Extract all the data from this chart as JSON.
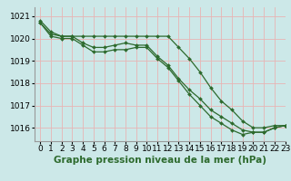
{
  "bg_color": "#cce8e8",
  "grid_color": "#e8b4b4",
  "line_color": "#2d6a2d",
  "xlabel": "Graphe pression niveau de la mer (hPa)",
  "xlabel_fontsize": 7.5,
  "tick_fontsize": 6.5,
  "xlim": [
    -0.5,
    23
  ],
  "ylim": [
    1015.4,
    1021.4
  ],
  "yticks": [
    1016,
    1017,
    1018,
    1019,
    1020,
    1021
  ],
  "xticks": [
    0,
    1,
    2,
    3,
    4,
    5,
    6,
    7,
    8,
    9,
    10,
    11,
    12,
    13,
    14,
    15,
    16,
    17,
    18,
    19,
    20,
    21,
    22,
    23
  ],
  "line1": [
    1020.8,
    1020.3,
    1020.1,
    1020.1,
    1020.1,
    1020.1,
    1020.1,
    1020.1,
    1020.1,
    1020.1,
    1020.1,
    1020.1,
    1020.1,
    1019.6,
    1019.1,
    1018.5,
    1017.8,
    1017.2,
    1016.8,
    1016.3,
    1016.0,
    1016.0,
    1016.1,
    1016.1
  ],
  "line2": [
    1020.7,
    1020.2,
    1020.1,
    1020.1,
    1019.8,
    1019.6,
    1019.6,
    1019.7,
    1019.8,
    1019.7,
    1019.7,
    1019.2,
    1018.8,
    1018.2,
    1017.7,
    1017.3,
    1016.8,
    1016.5,
    1016.2,
    1015.9,
    1015.8,
    1015.8,
    1016.0,
    1016.1
  ],
  "line3": [
    1020.7,
    1020.1,
    1020.0,
    1020.0,
    1019.7,
    1019.4,
    1019.4,
    1019.5,
    1019.5,
    1019.6,
    1019.6,
    1019.1,
    1018.7,
    1018.1,
    1017.5,
    1017.0,
    1016.5,
    1016.2,
    1015.9,
    1015.7,
    1015.8,
    1015.8,
    1016.0,
    1016.1
  ]
}
